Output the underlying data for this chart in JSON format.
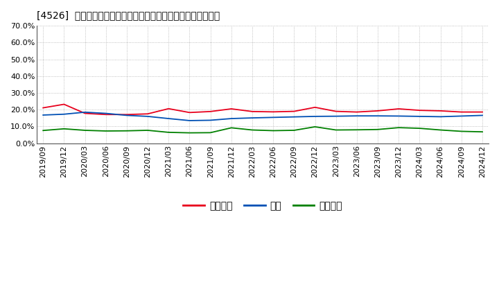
{
  "title": "[4526]  売上債権、在庫、買入債務の総資産に対する比率の推移",
  "x_labels": [
    "2019/09",
    "2019/12",
    "2020/03",
    "2020/06",
    "2020/09",
    "2020/12",
    "2021/03",
    "2021/06",
    "2021/09",
    "2021/12",
    "2022/03",
    "2022/06",
    "2022/09",
    "2022/12",
    "2023/03",
    "2023/06",
    "2023/09",
    "2023/12",
    "2024/03",
    "2024/06",
    "2024/09",
    "2024/12"
  ],
  "urikake": [
    0.211,
    0.232,
    0.178,
    0.171,
    0.171,
    0.175,
    0.206,
    0.183,
    0.189,
    0.205,
    0.189,
    0.187,
    0.19,
    0.214,
    0.19,
    0.186,
    0.193,
    0.205,
    0.196,
    0.193,
    0.186,
    0.186
  ],
  "zaiko": [
    0.168,
    0.173,
    0.185,
    0.178,
    0.166,
    0.16,
    0.147,
    0.135,
    0.137,
    0.147,
    0.151,
    0.154,
    0.157,
    0.16,
    0.161,
    0.163,
    0.163,
    0.162,
    0.16,
    0.158,
    0.162,
    0.166
  ],
  "kainyu": [
    0.076,
    0.086,
    0.077,
    0.073,
    0.074,
    0.077,
    0.065,
    0.062,
    0.063,
    0.092,
    0.079,
    0.075,
    0.077,
    0.098,
    0.079,
    0.08,
    0.082,
    0.093,
    0.089,
    0.079,
    0.071,
    0.068
  ],
  "urikake_color": "#e8001c",
  "zaiko_color": "#0050b4",
  "kainyu_color": "#008000",
  "ylim": [
    0.0,
    0.7
  ],
  "yticks": [
    0.0,
    0.1,
    0.2,
    0.3,
    0.4,
    0.5,
    0.6,
    0.7
  ],
  "background_color": "#ffffff",
  "plot_bg_color": "#ffffff",
  "grid_color": "#999999",
  "legend_urikake": "売上債権",
  "legend_zaiko": "在庫",
  "legend_kainyu": "買入債務",
  "title_fontsize": 11,
  "tick_fontsize": 8,
  "legend_fontsize": 9
}
